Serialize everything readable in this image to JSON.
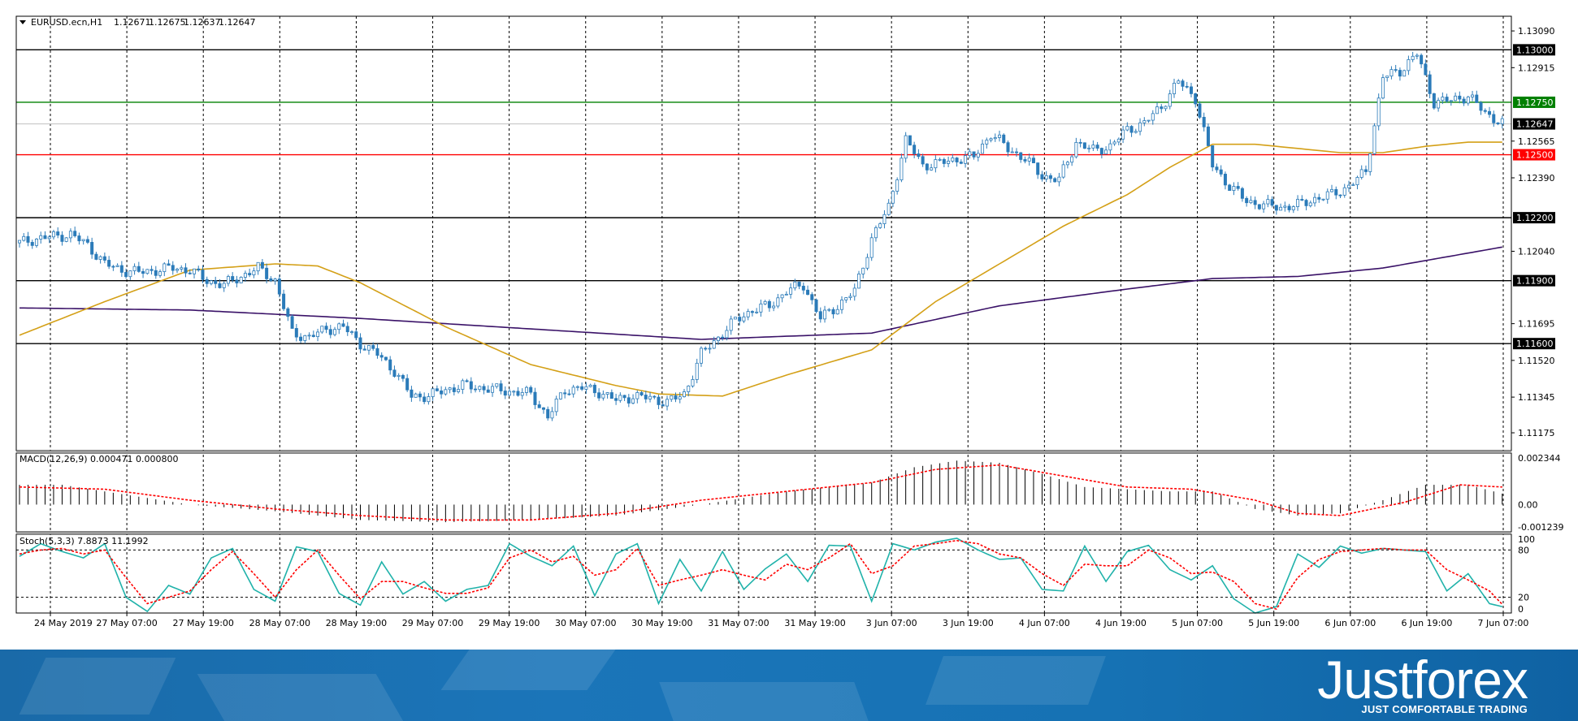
{
  "chart_data": [
    {
      "type": "candlestick",
      "title": "EURUSD.ecn,H1",
      "ohlc_header": [
        "1.12671",
        "1.12675",
        "1.12637",
        "1.12647"
      ],
      "x_tick_labels": [
        "24 May 2019",
        "27 May 07:00",
        "27 May 19:00",
        "28 May 07:00",
        "28 May 19:00",
        "29 May 07:00",
        "29 May 19:00",
        "30 May 07:00",
        "30 May 19:00",
        "31 May 07:00",
        "31 May 19:00",
        "3 Jun 07:00",
        "3 Jun 19:00",
        "4 Jun 07:00",
        "4 Jun 19:00",
        "5 Jun 07:00",
        "5 Jun 19:00",
        "6 Jun 07:00",
        "6 Jun 19:00",
        "7 Jun 07:00"
      ],
      "y_tick_labels": [
        "1.13090",
        "1.12915",
        "1.12565",
        "1.12390",
        "1.12040",
        "1.11695",
        "1.11520",
        "1.11345",
        "1.11175"
      ],
      "ylim": [
        1.1109,
        1.1316
      ],
      "grid": true,
      "current_price": "1.12647",
      "horizontal_levels": [
        {
          "label": "1.13000",
          "value": 1.13,
          "color": "#000000"
        },
        {
          "label": "1.12750",
          "value": 1.1275,
          "color": "#008000"
        },
        {
          "label": "1.12500",
          "value": 1.125,
          "color": "#ff0000"
        },
        {
          "label": "1.12200",
          "value": 1.122,
          "color": "#000000"
        },
        {
          "label": "1.11900",
          "value": 1.119,
          "color": "#000000"
        },
        {
          "label": "1.11600",
          "value": 1.116,
          "color": "#000000"
        }
      ],
      "price_path": [
        [
          0,
          1.1208
        ],
        [
          4,
          1.121
        ],
        [
          8,
          1.1211
        ],
        [
          12,
          1.1212
        ],
        [
          16,
          1.1207
        ],
        [
          20,
          1.1198
        ],
        [
          24,
          1.1195
        ],
        [
          28,
          1.1194
        ],
        [
          32,
          1.1195
        ],
        [
          36,
          1.1196
        ],
        [
          40,
          1.1195
        ],
        [
          44,
          1.119
        ],
        [
          48,
          1.1188
        ],
        [
          52,
          1.1192
        ],
        [
          56,
          1.1196
        ],
        [
          60,
          1.119
        ],
        [
          64,
          1.1165
        ],
        [
          68,
          1.1163
        ],
        [
          72,
          1.1167
        ],
        [
          76,
          1.1168
        ],
        [
          80,
          1.116
        ],
        [
          84,
          1.1155
        ],
        [
          88,
          1.1147
        ],
        [
          92,
          1.1135
        ],
        [
          96,
          1.1135
        ],
        [
          100,
          1.1138
        ],
        [
          104,
          1.114
        ],
        [
          108,
          1.1139
        ],
        [
          112,
          1.1138
        ],
        [
          116,
          1.1137
        ],
        [
          120,
          1.1136
        ],
        [
          124,
          1.1125
        ],
        [
          128,
          1.1138
        ],
        [
          132,
          1.1139
        ],
        [
          136,
          1.1137
        ],
        [
          140,
          1.1133
        ],
        [
          144,
          1.1135
        ],
        [
          148,
          1.1134
        ],
        [
          152,
          1.1132
        ],
        [
          156,
          1.1136
        ],
        [
          160,
          1.1155
        ],
        [
          164,
          1.1163
        ],
        [
          168,
          1.1171
        ],
        [
          172,
          1.1176
        ],
        [
          176,
          1.1178
        ],
        [
          180,
          1.1185
        ],
        [
          184,
          1.1188
        ],
        [
          188,
          1.1172
        ],
        [
          192,
          1.1178
        ],
        [
          196,
          1.1185
        ],
        [
          200,
          1.121
        ],
        [
          204,
          1.1225
        ],
        [
          208,
          1.1257
        ],
        [
          212,
          1.1245
        ],
        [
          216,
          1.1246
        ],
        [
          220,
          1.1248
        ],
        [
          224,
          1.1249
        ],
        [
          228,
          1.126
        ],
        [
          232,
          1.1253
        ],
        [
          236,
          1.1248
        ],
        [
          240,
          1.124
        ],
        [
          244,
          1.1238
        ],
        [
          248,
          1.1256
        ],
        [
          252,
          1.1252
        ],
        [
          256,
          1.1254
        ],
        [
          260,
          1.1262
        ],
        [
          264,
          1.1265
        ],
        [
          268,
          1.1273
        ],
        [
          272,
          1.1285
        ],
        [
          276,
          1.1277
        ],
        [
          280,
          1.1245
        ],
        [
          284,
          1.1235
        ],
        [
          288,
          1.1228
        ],
        [
          292,
          1.1226
        ],
        [
          296,
          1.1225
        ],
        [
          300,
          1.1226
        ],
        [
          304,
          1.1229
        ],
        [
          308,
          1.1231
        ],
        [
          312,
          1.1235
        ],
        [
          316,
          1.1242
        ],
        [
          320,
          1.1287
        ],
        [
          324,
          1.129
        ],
        [
          328,
          1.1298
        ],
        [
          332,
          1.1275
        ],
        [
          336,
          1.1276
        ],
        [
          340,
          1.1278
        ],
        [
          344,
          1.127
        ],
        [
          348,
          1.1265
        ]
      ],
      "ma_fast": [
        [
          0,
          1.1164
        ],
        [
          20,
          1.118
        ],
        [
          40,
          1.1195
        ],
        [
          60,
          1.1198
        ],
        [
          70,
          1.1197
        ],
        [
          80,
          1.1189
        ],
        [
          100,
          1.1168
        ],
        [
          120,
          1.115
        ],
        [
          140,
          1.114
        ],
        [
          150,
          1.1136
        ],
        [
          165,
          1.1135
        ],
        [
          180,
          1.1145
        ],
        [
          200,
          1.1157
        ],
        [
          215,
          1.118
        ],
        [
          230,
          1.1198
        ],
        [
          245,
          1.1216
        ],
        [
          260,
          1.1231
        ],
        [
          270,
          1.1244
        ],
        [
          280,
          1.1255
        ],
        [
          290,
          1.1255
        ],
        [
          300,
          1.1253
        ],
        [
          310,
          1.1251
        ],
        [
          320,
          1.1251
        ],
        [
          330,
          1.1254
        ],
        [
          340,
          1.1256
        ],
        [
          348,
          1.1256
        ]
      ],
      "ma_slow": [
        [
          0,
          1.1177
        ],
        [
          40,
          1.1176
        ],
        [
          80,
          1.1172
        ],
        [
          120,
          1.1167
        ],
        [
          160,
          1.1162
        ],
        [
          200,
          1.1165
        ],
        [
          230,
          1.1178
        ],
        [
          260,
          1.1186
        ],
        [
          280,
          1.1191
        ],
        [
          300,
          1.1192
        ],
        [
          320,
          1.1196
        ],
        [
          348,
          1.1206
        ]
      ],
      "colors": {
        "bull": "#2b7bb9",
        "bear": "#2b7bb9",
        "ma_fast": "#d4a017",
        "ma_slow": "#3a1268",
        "grid": "#000000"
      }
    },
    {
      "type": "histogram",
      "title": "MACD(12,26,9) 0.000471 0.000800",
      "y_tick_labels": [
        "0.002344",
        "0.00",
        "-0.001239"
      ],
      "ylim": [
        -0.001239,
        0.002344
      ],
      "histogram": [
        [
          0,
          0.0009
        ],
        [
          10,
          0.0009
        ],
        [
          20,
          0.0006
        ],
        [
          30,
          0.0003
        ],
        [
          40,
          0.0
        ],
        [
          60,
          -0.0003
        ],
        [
          80,
          -0.0007
        ],
        [
          100,
          -0.0008
        ],
        [
          120,
          -0.0007
        ],
        [
          140,
          -0.0005
        ],
        [
          160,
          0.0
        ],
        [
          180,
          0.0006
        ],
        [
          200,
          0.001
        ],
        [
          210,
          0.0017
        ],
        [
          220,
          0.002
        ],
        [
          230,
          0.0019
        ],
        [
          240,
          0.0014
        ],
        [
          250,
          0.0008
        ],
        [
          260,
          0.0007
        ],
        [
          270,
          0.0006
        ],
        [
          280,
          0.0006
        ],
        [
          290,
          -0.0002
        ],
        [
          300,
          -0.0005
        ],
        [
          310,
          -0.0004
        ],
        [
          320,
          0.0002
        ],
        [
          330,
          0.0009
        ],
        [
          340,
          0.0009
        ],
        [
          348,
          0.0005
        ]
      ],
      "signal": [
        [
          0,
          0.0008
        ],
        [
          20,
          0.0007
        ],
        [
          40,
          0.0002
        ],
        [
          60,
          -0.0002
        ],
        [
          80,
          -0.0005
        ],
        [
          100,
          -0.0007
        ],
        [
          120,
          -0.0007
        ],
        [
          140,
          -0.0004
        ],
        [
          160,
          0.0002
        ],
        [
          180,
          0.0006
        ],
        [
          200,
          0.001
        ],
        [
          215,
          0.0016
        ],
        [
          230,
          0.0018
        ],
        [
          245,
          0.0013
        ],
        [
          260,
          0.0008
        ],
        [
          275,
          0.0007
        ],
        [
          290,
          0.0002
        ],
        [
          300,
          -0.0004
        ],
        [
          310,
          -0.0005
        ],
        [
          325,
          0.0001
        ],
        [
          338,
          0.0009
        ],
        [
          348,
          0.0008
        ]
      ],
      "colors": {
        "bars": "#000000",
        "signal": "#ff0000"
      }
    },
    {
      "type": "line",
      "title": "Stoch(5,3,3) 7.8873 11.1992",
      "y_tick_labels": [
        "100",
        "80",
        "20",
        "0"
      ],
      "ylim": [
        0,
        100
      ],
      "levels": [
        80,
        20
      ],
      "main": [
        [
          0,
          72
        ],
        [
          5,
          88
        ],
        [
          10,
          78
        ],
        [
          15,
          70
        ],
        [
          20,
          88
        ],
        [
          25,
          20
        ],
        [
          30,
          2
        ],
        [
          35,
          35
        ],
        [
          40,
          24
        ],
        [
          45,
          70
        ],
        [
          50,
          82
        ],
        [
          55,
          30
        ],
        [
          60,
          15
        ],
        [
          65,
          84
        ],
        [
          70,
          78
        ],
        [
          75,
          25
        ],
        [
          80,
          10
        ],
        [
          85,
          65
        ],
        [
          90,
          24
        ],
        [
          95,
          40
        ],
        [
          100,
          15
        ],
        [
          105,
          30
        ],
        [
          110,
          35
        ],
        [
          115,
          88
        ],
        [
          120,
          72
        ],
        [
          125,
          60
        ],
        [
          130,
          85
        ],
        [
          135,
          22
        ],
        [
          140,
          75
        ],
        [
          145,
          88
        ],
        [
          150,
          12
        ],
        [
          155,
          68
        ],
        [
          160,
          28
        ],
        [
          165,
          78
        ],
        [
          170,
          30
        ],
        [
          175,
          56
        ],
        [
          180,
          75
        ],
        [
          185,
          40
        ],
        [
          190,
          86
        ],
        [
          195,
          85
        ],
        [
          200,
          15
        ],
        [
          205,
          88
        ],
        [
          210,
          80
        ],
        [
          215,
          90
        ],
        [
          220,
          95
        ],
        [
          225,
          80
        ],
        [
          230,
          68
        ],
        [
          235,
          70
        ],
        [
          240,
          30
        ],
        [
          245,
          28
        ],
        [
          250,
          85
        ],
        [
          255,
          40
        ],
        [
          260,
          78
        ],
        [
          265,
          86
        ],
        [
          270,
          55
        ],
        [
          275,
          42
        ],
        [
          280,
          60
        ],
        [
          285,
          18
        ],
        [
          290,
          0
        ],
        [
          295,
          8
        ],
        [
          300,
          75
        ],
        [
          305,
          58
        ],
        [
          310,
          85
        ],
        [
          315,
          76
        ],
        [
          320,
          82
        ],
        [
          325,
          80
        ],
        [
          330,
          78
        ],
        [
          335,
          28
        ],
        [
          340,
          50
        ],
        [
          345,
          12
        ],
        [
          348,
          8
        ]
      ],
      "signal": [
        [
          0,
          75
        ],
        [
          5,
          80
        ],
        [
          10,
          82
        ],
        [
          15,
          75
        ],
        [
          20,
          80
        ],
        [
          25,
          45
        ],
        [
          30,
          12
        ],
        [
          35,
          20
        ],
        [
          40,
          28
        ],
        [
          45,
          55
        ],
        [
          50,
          78
        ],
        [
          55,
          50
        ],
        [
          60,
          20
        ],
        [
          65,
          55
        ],
        [
          70,
          80
        ],
        [
          75,
          48
        ],
        [
          80,
          18
        ],
        [
          85,
          40
        ],
        [
          90,
          40
        ],
        [
          95,
          32
        ],
        [
          100,
          25
        ],
        [
          105,
          25
        ],
        [
          110,
          32
        ],
        [
          115,
          70
        ],
        [
          120,
          80
        ],
        [
          125,
          65
        ],
        [
          130,
          72
        ],
        [
          135,
          48
        ],
        [
          140,
          55
        ],
        [
          145,
          82
        ],
        [
          150,
          35
        ],
        [
          155,
          42
        ],
        [
          160,
          48
        ],
        [
          165,
          55
        ],
        [
          170,
          48
        ],
        [
          175,
          42
        ],
        [
          180,
          62
        ],
        [
          185,
          55
        ],
        [
          190,
          70
        ],
        [
          195,
          88
        ],
        [
          200,
          50
        ],
        [
          205,
          60
        ],
        [
          210,
          85
        ],
        [
          215,
          88
        ],
        [
          220,
          92
        ],
        [
          225,
          88
        ],
        [
          230,
          75
        ],
        [
          235,
          70
        ],
        [
          240,
          50
        ],
        [
          245,
          35
        ],
        [
          250,
          62
        ],
        [
          255,
          60
        ],
        [
          260,
          60
        ],
        [
          265,
          80
        ],
        [
          270,
          70
        ],
        [
          275,
          50
        ],
        [
          280,
          52
        ],
        [
          285,
          40
        ],
        [
          290,
          12
        ],
        [
          295,
          5
        ],
        [
          300,
          45
        ],
        [
          305,
          68
        ],
        [
          310,
          78
        ],
        [
          315,
          80
        ],
        [
          320,
          82
        ],
        [
          325,
          80
        ],
        [
          330,
          80
        ],
        [
          335,
          55
        ],
        [
          340,
          42
        ],
        [
          345,
          28
        ],
        [
          348,
          11
        ]
      ],
      "colors": {
        "main": "#20b2aa",
        "signal": "#ff0000"
      }
    }
  ],
  "brand": {
    "name": "Justforex",
    "tagline": "JUST COMFORTABLE TRADING"
  }
}
